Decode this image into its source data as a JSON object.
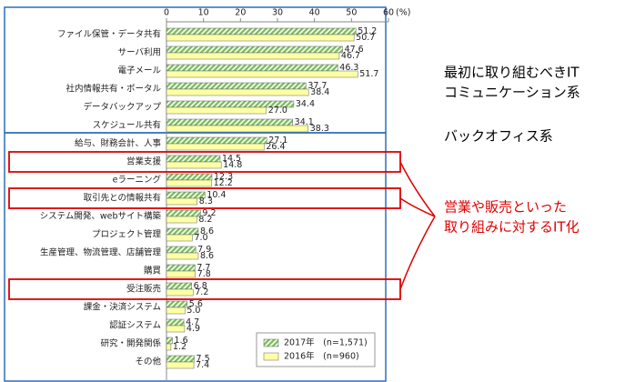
{
  "chart_data": {
    "type": "hbar",
    "categories": [
      "ファイル保管・データ共有",
      "サーバ利用",
      "電子メール",
      "社内情報共有・ポータル",
      "データバックアップ",
      "スケジュール共有",
      "給与、財務会計、人事",
      "営業支援",
      "eラーニング",
      "取引先との情報共有",
      "システム開発、webサイト構築",
      "プロジェクト管理",
      "生産管理、物流管理、店舗管理",
      "購買",
      "受注販売",
      "課金・決済システム",
      "認証システム",
      "研究・開発関係",
      "その他"
    ],
    "series": [
      {
        "name": "2017年　(n=1,571)",
        "color": "#7dbf5a",
        "pattern": "hatch",
        "values": [
          51.2,
          47.6,
          46.3,
          37.7,
          34.4,
          34.1,
          27.1,
          14.5,
          12.3,
          10.4,
          9.2,
          8.6,
          7.9,
          7.7,
          6.8,
          5.6,
          4.7,
          1.6,
          7.5
        ],
        "value_labels": [
          "51.2",
          "47.6",
          "46.3",
          "37.7",
          "34.4",
          "34.1",
          "27.1",
          "14.5",
          "12.3",
          "10.4",
          "9.2",
          "8.6",
          "7.9",
          "7.7",
          "6.8",
          "5.6",
          "4.7",
          "1.6",
          "7.5"
        ]
      },
      {
        "name": "2016年　(n=960)",
        "color": "#ffffa6",
        "values": [
          50.7,
          46.7,
          51.7,
          38.4,
          27.0,
          38.3,
          26.4,
          14.8,
          12.2,
          8.3,
          8.2,
          7.0,
          8.6,
          7.8,
          7.2,
          5.0,
          4.9,
          1.2,
          7.4
        ],
        "value_labels": [
          "50.7",
          "46.7",
          "51.7",
          "38.4",
          "27.0",
          "38.3",
          "26.4",
          "14.8",
          "12.2",
          "8.3",
          "8.2",
          "7.0",
          "8.6",
          "7.8",
          "7.2",
          "5.0",
          "4.9",
          "1.2",
          "7.4"
        ]
      }
    ],
    "xlim": [
      0,
      60
    ],
    "xticks": [
      0,
      10,
      20,
      30,
      40,
      50,
      60
    ],
    "x_unit": "(%)",
    "grid": false,
    "annotations": [
      {
        "lines": [
          "最初に取り組むべきIT",
          "コミュニケーション系"
        ],
        "color": "#000000"
      },
      {
        "lines": [
          "バックオフィス系"
        ],
        "color": "#000000"
      },
      {
        "lines": [
          "営業や販売といった",
          "取り組みに対するIT化"
        ],
        "color": "#e00000"
      }
    ]
  }
}
